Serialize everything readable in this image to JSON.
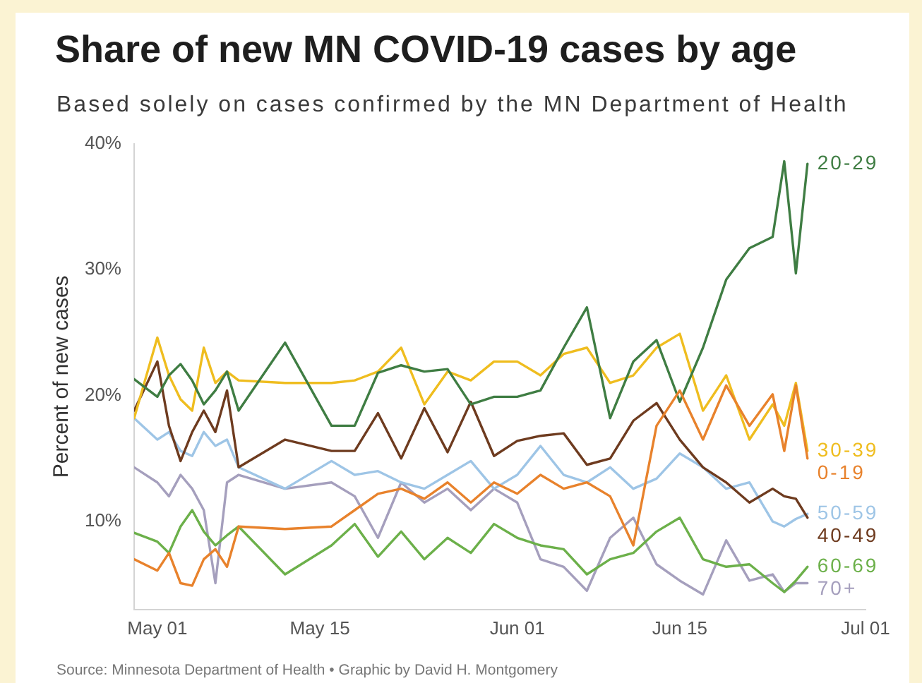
{
  "chart_data": {
    "type": "line",
    "title": "Share of new MN COVID-19 cases by age",
    "subtitle": "Based solely on cases confirmed by the MN Department of Health",
    "ylabel": "Percent of new cases",
    "annotations": [
      "Source: Minnesota Department of Health • Graphic by David H. Montgomery"
    ],
    "x": [
      "--04-29",
      "--05-01",
      "--05-02",
      "--05-03",
      "--05-04",
      "--05-05",
      "--05-06",
      "--05-07",
      "--05-08",
      "--05-12",
      "--05-16",
      "--05-18",
      "--05-20",
      "--05-22",
      "--05-24",
      "--05-26",
      "--05-28",
      "--05-30",
      "--06-01",
      "--06-03",
      "--06-05",
      "--06-07",
      "--06-09",
      "--06-11",
      "--06-13",
      "--06-15",
      "--06-17",
      "--06-19",
      "--06-21",
      "--06-23",
      "--06-24",
      "--06-25",
      "--06-26"
    ],
    "series": [
      {
        "name": "0-19",
        "color": "#e8822c",
        "values": [
          7.0,
          6.1,
          7.5,
          5.1,
          4.9,
          7.0,
          7.8,
          6.4,
          9.6,
          9.4,
          9.6,
          10.9,
          12.2,
          12.6,
          11.8,
          13.1,
          11.5,
          13.1,
          12.2,
          13.7,
          12.6,
          13.1,
          12.0,
          8.1,
          17.6,
          20.4,
          16.5,
          20.8,
          17.6,
          20.1,
          15.6,
          20.8,
          15.0
        ]
      },
      {
        "name": "20-29",
        "color": "#3f7d43",
        "values": [
          21.3,
          19.9,
          21.6,
          22.5,
          21.2,
          19.3,
          20.4,
          21.9,
          18.8,
          24.2,
          17.6,
          17.6,
          21.8,
          22.4,
          21.9,
          22.1,
          19.3,
          19.9,
          19.9,
          20.4,
          23.8,
          27.0,
          18.2,
          22.7,
          24.4,
          19.5,
          23.8,
          29.2,
          31.7,
          32.6,
          38.6,
          29.7,
          38.4
        ]
      },
      {
        "name": "30-39",
        "color": "#efbd1f",
        "values": [
          18.2,
          24.6,
          21.6,
          19.7,
          18.8,
          23.8,
          21.0,
          21.9,
          21.2,
          21.0,
          21.0,
          21.2,
          21.9,
          23.8,
          19.3,
          21.9,
          21.2,
          22.7,
          22.7,
          21.6,
          23.3,
          23.8,
          21.0,
          21.6,
          23.8,
          24.9,
          18.8,
          21.6,
          16.5,
          19.3,
          17.6,
          21.0,
          15.6
        ]
      },
      {
        "name": "40-49",
        "color": "#6e3b1f",
        "values": [
          18.8,
          22.7,
          17.6,
          14.8,
          17.1,
          18.8,
          17.1,
          20.4,
          14.3,
          16.5,
          15.6,
          15.6,
          18.6,
          15.0,
          19.0,
          15.5,
          19.5,
          15.2,
          16.4,
          16.8,
          17.0,
          14.5,
          15.0,
          18.0,
          19.4,
          16.5,
          14.3,
          13.1,
          11.5,
          12.6,
          12.0,
          11.8,
          10.3
        ]
      },
      {
        "name": "50-59",
        "color": "#9ec5e6",
        "values": [
          18.2,
          16.5,
          17.1,
          15.6,
          15.2,
          17.1,
          16.0,
          16.5,
          14.3,
          12.6,
          14.8,
          13.7,
          14.0,
          13.1,
          12.6,
          13.7,
          14.8,
          12.6,
          13.7,
          16.0,
          13.7,
          13.1,
          14.3,
          12.6,
          13.4,
          15.4,
          14.3,
          12.6,
          13.1,
          10.0,
          9.6,
          10.2,
          10.6
        ]
      },
      {
        "name": "60-69",
        "color": "#6cb04a",
        "values": [
          9.1,
          8.4,
          7.5,
          9.6,
          10.9,
          9.2,
          8.1,
          8.9,
          9.6,
          5.8,
          8.1,
          9.8,
          7.2,
          9.2,
          7.0,
          8.7,
          7.5,
          9.8,
          8.7,
          8.1,
          7.8,
          5.8,
          7.0,
          7.5,
          9.2,
          10.3,
          7.0,
          6.4,
          6.6,
          5.1,
          4.4,
          5.3,
          6.4
        ]
      },
      {
        "name": "70+",
        "color": "#a59fbd",
        "values": [
          14.3,
          13.1,
          12.0,
          13.7,
          12.6,
          10.9,
          5.1,
          13.1,
          13.7,
          12.6,
          13.1,
          12.0,
          8.7,
          13.1,
          11.5,
          12.6,
          10.9,
          12.6,
          11.5,
          7.0,
          6.4,
          4.5,
          8.7,
          10.3,
          6.6,
          5.3,
          4.2,
          8.5,
          5.3,
          5.8,
          4.4,
          5.1,
          5.1
        ]
      }
    ],
    "xlim": [
      "--04-29",
      "--07-01"
    ],
    "xticks": [
      {
        "value": "--05-01",
        "label": "May 01"
      },
      {
        "value": "--05-15",
        "label": "May 15"
      },
      {
        "value": "--06-01",
        "label": "Jun 01"
      },
      {
        "value": "--06-15",
        "label": "Jun 15"
      },
      {
        "value": "--07-01",
        "label": "Jul 01"
      }
    ],
    "ylim": [
      3,
      40
    ],
    "yticks": [
      {
        "value": 10,
        "label": "10%"
      },
      {
        "value": 20,
        "label": "20%"
      },
      {
        "value": 30,
        "label": "30%"
      },
      {
        "value": 40,
        "label": "40%"
      }
    ]
  }
}
